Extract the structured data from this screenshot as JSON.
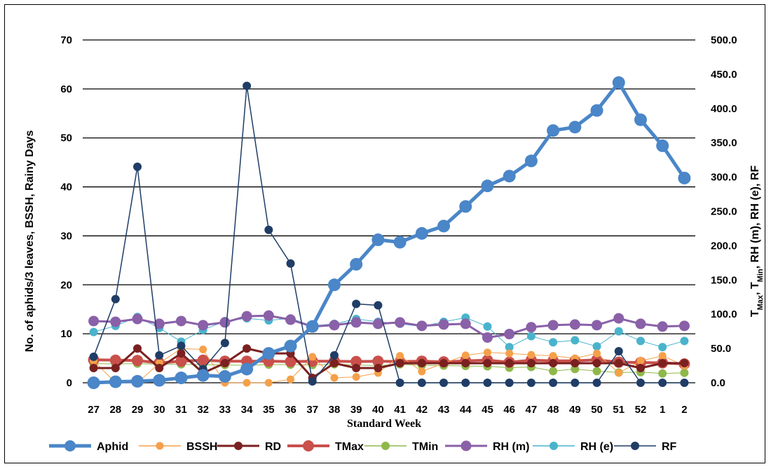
{
  "chart_data": {
    "type": "line",
    "categories": [
      "27",
      "28",
      "29",
      "30",
      "31",
      "32",
      "33",
      "34",
      "35",
      "36",
      "37",
      "38",
      "39",
      "40",
      "41",
      "42",
      "43",
      "44",
      "45",
      "46",
      "47",
      "48",
      "49",
      "50",
      "51",
      "52",
      "1",
      "2"
    ],
    "xlabel": "Standard Week",
    "ylabel_left": "No. of aphids/3 leaves, BSSH, Rainy Days",
    "ylabel_right_parts": [
      "T",
      "Max",
      ", T",
      "Min",
      ", RH (m), RH (e), RF"
    ],
    "ylim_left": [
      0,
      70
    ],
    "ylim_right": [
      0,
      500
    ],
    "yticks_left": [
      "0",
      "10",
      "20",
      "30",
      "40",
      "50",
      "60",
      "70"
    ],
    "yticks_right": [
      "0.0",
      "50.0",
      "100.0",
      "150.0",
      "200.0",
      "250.0",
      "300.0",
      "350.0",
      "400.0",
      "450.0",
      "500.0"
    ],
    "grid": "horizontal",
    "legend_position": "bottom",
    "series": [
      {
        "name": "Aphid",
        "axis": "left",
        "color": "#4a86c8",
        "values": [
          0,
          0.2,
          0.3,
          0.5,
          1,
          1.5,
          1.3,
          2.8,
          6,
          7.5,
          11.5,
          20,
          24.2,
          29.2,
          28.7,
          30.5,
          32,
          36,
          40.2,
          42.2,
          45.3,
          51.5,
          52.2,
          55.6,
          61.3,
          53.7,
          48.4,
          41.8
        ]
      },
      {
        "name": "BSSH",
        "axis": "left",
        "color": "#f5a04a",
        "values": [
          4.5,
          0,
          0,
          4,
          7,
          6.8,
          0,
          0,
          0,
          0.7,
          5.3,
          1,
          1.2,
          2,
          5.5,
          2.3,
          4,
          5.6,
          6.2,
          6,
          5.7,
          5.5,
          5,
          6,
          2,
          4.5,
          5.5,
          3.5
        ]
      },
      {
        "name": "RD",
        "axis": "left",
        "color": "#7a2020",
        "values": [
          3,
          3,
          7,
          3,
          6,
          2,
          4,
          7,
          6,
          6,
          1,
          4,
          3,
          3,
          4,
          4,
          4,
          4,
          4,
          4,
          4,
          4,
          4,
          4,
          4,
          3,
          4,
          4
        ]
      },
      {
        "name": "TMax",
        "axis": "right",
        "color": "#c9504b",
        "values": [
          33.5,
          33,
          32.5,
          29,
          31.5,
          33,
          31.5,
          31.5,
          31.5,
          31,
          31.5,
          31.5,
          31,
          31.5,
          31,
          31.5,
          30.5,
          32,
          33,
          30,
          33,
          32,
          32,
          33.5,
          30,
          29.5,
          29,
          27.5
        ]
      },
      {
        "name": "TMin",
        "axis": "right",
        "color": "#8fb84a",
        "values": [
          28,
          27.5,
          28,
          27,
          27,
          26.5,
          26,
          25.5,
          26.5,
          26.5,
          26,
          27,
          26,
          25,
          27,
          25.5,
          25,
          24.5,
          24,
          22,
          23,
          17,
          20,
          17,
          15,
          15.5,
          13.5,
          14.5
        ]
      },
      {
        "name": "RH (m)",
        "axis": "right",
        "color": "#8a60a8",
        "values": [
          90,
          89,
          93,
          86,
          90,
          84,
          88,
          97,
          98,
          92,
          82,
          84,
          88,
          86,
          88,
          83,
          85,
          86,
          66,
          71,
          81,
          84,
          85,
          84,
          94,
          86,
          82,
          83
        ]
      },
      {
        "name": "RH (e)",
        "axis": "right",
        "color": "#4ab3cc",
        "values": [
          74,
          83,
          96,
          80,
          60,
          77,
          90,
          94,
          91,
          94,
          83,
          86,
          93,
          89,
          86,
          82,
          89,
          95,
          82,
          52,
          68,
          59,
          62,
          53,
          75,
          61,
          52,
          61
        ]
      },
      {
        "name": "RF",
        "axis": "right",
        "color": "#1f3d66",
        "values": [
          38,
          122,
          315,
          40,
          54,
          20,
          58,
          433,
          223,
          174,
          2,
          40,
          115,
          113,
          0,
          0,
          0,
          0,
          0,
          0,
          0,
          0,
          0,
          0,
          46,
          0,
          0,
          0
        ]
      }
    ]
  }
}
